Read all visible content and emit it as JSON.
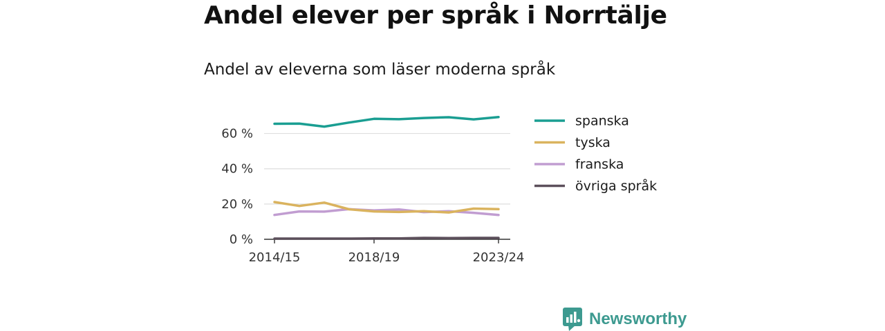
{
  "title": "Andel elever per språk i Norrtälje",
  "subtitle": "Andel av eleverna som läser moderna språk",
  "brand": {
    "name": "Newsworthy",
    "icon": "newsworthy-logo-icon"
  },
  "chart_data": {
    "type": "line",
    "title": "Andel elever per språk i Norrtälje",
    "subtitle": "Andel av eleverna som läser moderna språk",
    "x": [
      "2014/15",
      "2015/16",
      "2016/17",
      "2017/18",
      "2018/19",
      "2019/20",
      "2020/21",
      "2021/22",
      "2022/23",
      "2023/24"
    ],
    "x_tick_labels": [
      "2014/15",
      "2018/19",
      "2023/24"
    ],
    "ylim": [
      0,
      70
    ],
    "y_ticks": [
      0,
      20,
      40,
      60
    ],
    "y_tick_labels": [
      "0 %",
      "20 %",
      "40 %",
      "60 %"
    ],
    "grid": true,
    "legend_position": "right",
    "series": [
      {
        "name": "spanska",
        "color": "#1a9e92",
        "values": [
          65.5,
          65.6,
          63.9,
          66.2,
          68.3,
          68.1,
          68.8,
          69.2,
          68.0,
          69.3
        ]
      },
      {
        "name": "tyska",
        "color": "#dab35e",
        "values": [
          21.1,
          18.9,
          20.8,
          17.0,
          15.8,
          15.5,
          15.9,
          15.2,
          17.4,
          17.1
        ]
      },
      {
        "name": "franska",
        "color": "#c19dd1",
        "values": [
          13.8,
          15.8,
          15.7,
          17.1,
          16.4,
          16.9,
          15.4,
          15.9,
          15.0,
          13.8
        ]
      },
      {
        "name": "övriga språk",
        "color": "#5c4f5b",
        "values": [
          0.4,
          0.4,
          0.4,
          0.4,
          0.5,
          0.5,
          0.8,
          0.7,
          0.8,
          0.8
        ]
      }
    ]
  }
}
